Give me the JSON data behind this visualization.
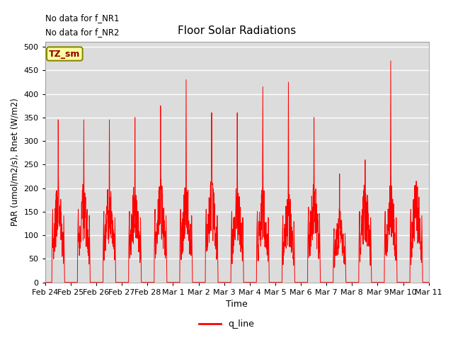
{
  "title": "Floor Solar Radiations",
  "xlabel": "Time",
  "ylabel": "PAR (umol/m2/s), Rnet (W/m2)",
  "ylim": [
    0,
    510
  ],
  "yticks": [
    0,
    50,
    100,
    150,
    200,
    250,
    300,
    350,
    400,
    450,
    500
  ],
  "legend_label": "q_line",
  "line_color": "red",
  "bg_color": "#dcdcdc",
  "annotation1": "No data for f_NR1",
  "annotation2": "No data for f_NR2",
  "legend_box_label": "TZ_sm",
  "legend_box_color": "#ffffa0",
  "legend_box_border": "#888800",
  "total_days": 15,
  "day_peaks": [
    345,
    345,
    345,
    350,
    375,
    430,
    360,
    360,
    415,
    425,
    350,
    230,
    260,
    470,
    200
  ],
  "day_shoulder": [
    170,
    170,
    165,
    165,
    170,
    170,
    170,
    165,
    165,
    155,
    175,
    125,
    165,
    165,
    170
  ],
  "x_labels": [
    "Feb 24",
    "Feb 25",
    "Feb 26",
    "Feb 27",
    "Feb 28",
    "Mar 1",
    "Mar 2",
    "Mar 3",
    "Mar 4",
    "Mar 5",
    "Mar 6",
    "Mar 7",
    "Mar 8",
    "Mar 9",
    "Mar 10",
    "Mar 11"
  ]
}
